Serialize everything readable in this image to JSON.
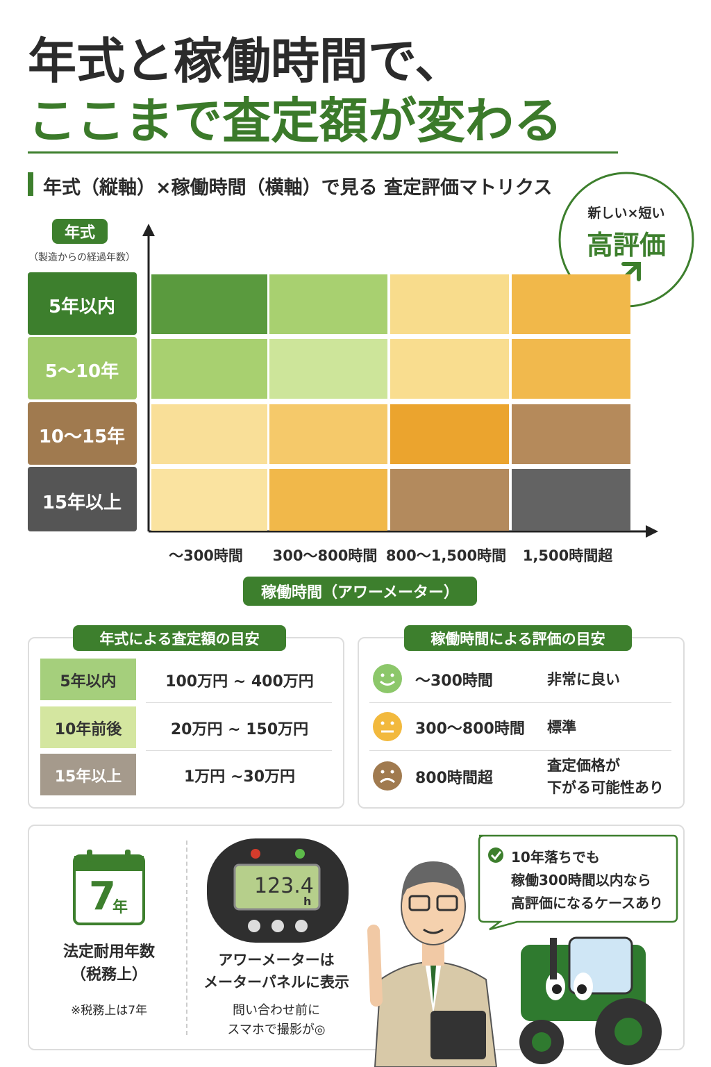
{
  "header": {
    "title_lines": [
      "年式と稼働時間で、",
      "ここまで査定額が変わる"
    ]
  },
  "matrix": {
    "heading": "年式（縦軸）×稼働時間（横軸）で見る 査定評価マトリクス",
    "y_axis": {
      "label": "年式",
      "note": "（製造からの経過年数）"
    },
    "rows": [
      "5年以内",
      "5〜10年",
      "10〜15年",
      "15年以上"
    ],
    "row_colors": [
      "#3d7f2d",
      "#9fc96a",
      "#a07a4f",
      "#555555"
    ],
    "columns": [
      "〜300時間",
      "300〜800時間",
      "800〜1,500時間",
      "1,500時間超"
    ],
    "x_axis_label": "稼働時間（アワーメーター）",
    "cell_colors": [
      [
        "#5a9a3e",
        "#a8d070",
        "#f8dc8c",
        "#f1b84a"
      ],
      [
        "#a8d070",
        "#cde59a",
        "#f9dd8f",
        "#f1b94d"
      ],
      [
        "#f9df98",
        "#f5c96a",
        "#eba42e",
        "#b58a5b"
      ],
      [
        "#fae3a0",
        "#f1b84a",
        "#b38a5d",
        "#636363"
      ]
    ],
    "callout": {
      "top": "新しい×短い",
      "main": "高評価"
    }
  },
  "age_table": {
    "title": "年式による査定額の目安",
    "rows": [
      {
        "label": "5年以内",
        "value": "100万円 ~ 400万円",
        "color": "#a5cf7c"
      },
      {
        "label": "10年前後",
        "value": "20万円 ~ 150万円",
        "color": "#d4e6a0"
      },
      {
        "label": "15年以上",
        "value": "1万円 ~30万円",
        "color": "#a59a8c"
      }
    ]
  },
  "hours_table": {
    "title": "稼働時間による評価の目安",
    "rows": [
      {
        "hours": "〜300時間",
        "rating_lines": [
          "非常に良い"
        ]
      },
      {
        "hours": "300〜800時間",
        "rating_lines": [
          "標準"
        ]
      },
      {
        "hours": "800時間超",
        "rating_lines": [
          "査定価格が",
          "下がる可能性あり"
        ]
      }
    ]
  },
  "bottom": {
    "calendar": {
      "number": "7",
      "unit": "年"
    },
    "useful_life_lines": [
      "法定耐用年数",
      "（税務上）"
    ],
    "useful_life_note": "※税務上は7年",
    "meter": {
      "reading": "123.4",
      "unit": "h"
    },
    "meter_lines": [
      "アワーメーターは",
      "メーターパネルに表示"
    ],
    "meter_note_lines": [
      "問い合わせ前に",
      "スマホで撮影が◎"
    ],
    "speech_lines": [
      "10年落ちでも",
      "稼働300時間以内なら",
      "高評価になるケースあり"
    ]
  }
}
